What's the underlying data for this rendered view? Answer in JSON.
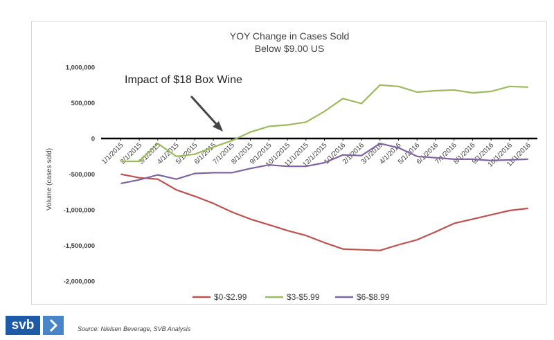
{
  "chart_data": {
    "type": "line",
    "title": "YOY Change in Cases Sold",
    "subtitle": "Below $9.00 US",
    "ylabel": "Volume (cases sold)",
    "xlabel": "",
    "ylim": [
      -2000000,
      1000000
    ],
    "yticks": [
      1000000,
      500000,
      0,
      -500000,
      -1000000,
      -1500000,
      -2000000
    ],
    "ytick_labels": [
      "1,000,000",
      "500,000",
      "0",
      "-500,000",
      "-1,000,000",
      "-1,500,000",
      "-2,000,000"
    ],
    "categories": [
      "1/1/2015",
      "2/1/2015",
      "3/1/2015",
      "4/1/2015",
      "5/1/2015",
      "6/1/2015",
      "7/1/2015",
      "8/1/2015",
      "9/1/2015",
      "10/1/2015",
      "11/1/2015",
      "12/1/2015",
      "1/1/2016",
      "2/1/2016",
      "3/1/2016",
      "4/1/2016",
      "5/1/2016",
      "6/1/2016",
      "7/1/2016",
      "8/1/2016",
      "9/1/2016",
      "10/1/2016",
      "11/1/2016"
    ],
    "series": [
      {
        "name": "$0-$2.99",
        "color": "#c0504d",
        "values": [
          -500000,
          -550000,
          -570000,
          -720000,
          -810000,
          -910000,
          -1030000,
          -1130000,
          -1210000,
          -1290000,
          -1360000,
          -1460000,
          -1550000,
          -1560000,
          -1570000,
          -1490000,
          -1420000,
          -1310000,
          -1190000,
          -1130000,
          -1070000,
          -1010000,
          -980000
        ]
      },
      {
        "name": "$3-$5.99",
        "color": "#9bbb59",
        "values": [
          -320000,
          -320000,
          -70000,
          -250000,
          -220000,
          -120000,
          -30000,
          90000,
          170000,
          190000,
          230000,
          380000,
          560000,
          490000,
          750000,
          730000,
          650000,
          670000,
          680000,
          640000,
          660000,
          730000,
          720000
        ]
      },
      {
        "name": "$6-$8.99",
        "color": "#8064a2",
        "values": [
          -630000,
          -580000,
          -510000,
          -570000,
          -490000,
          -480000,
          -480000,
          -420000,
          -370000,
          -390000,
          -390000,
          -340000,
          -230000,
          -240000,
          -70000,
          -130000,
          -250000,
          -270000,
          -290000,
          -290000,
          -310000,
          -300000,
          -290000
        ]
      }
    ],
    "legend_position": "bottom",
    "annotation": {
      "text": "Impact of $18 Box Wine",
      "points_to": "7/1/2015"
    }
  },
  "footer": {
    "logo_text": "svb",
    "source": "Source: Nielsen Beverage, SVB Analysis"
  }
}
